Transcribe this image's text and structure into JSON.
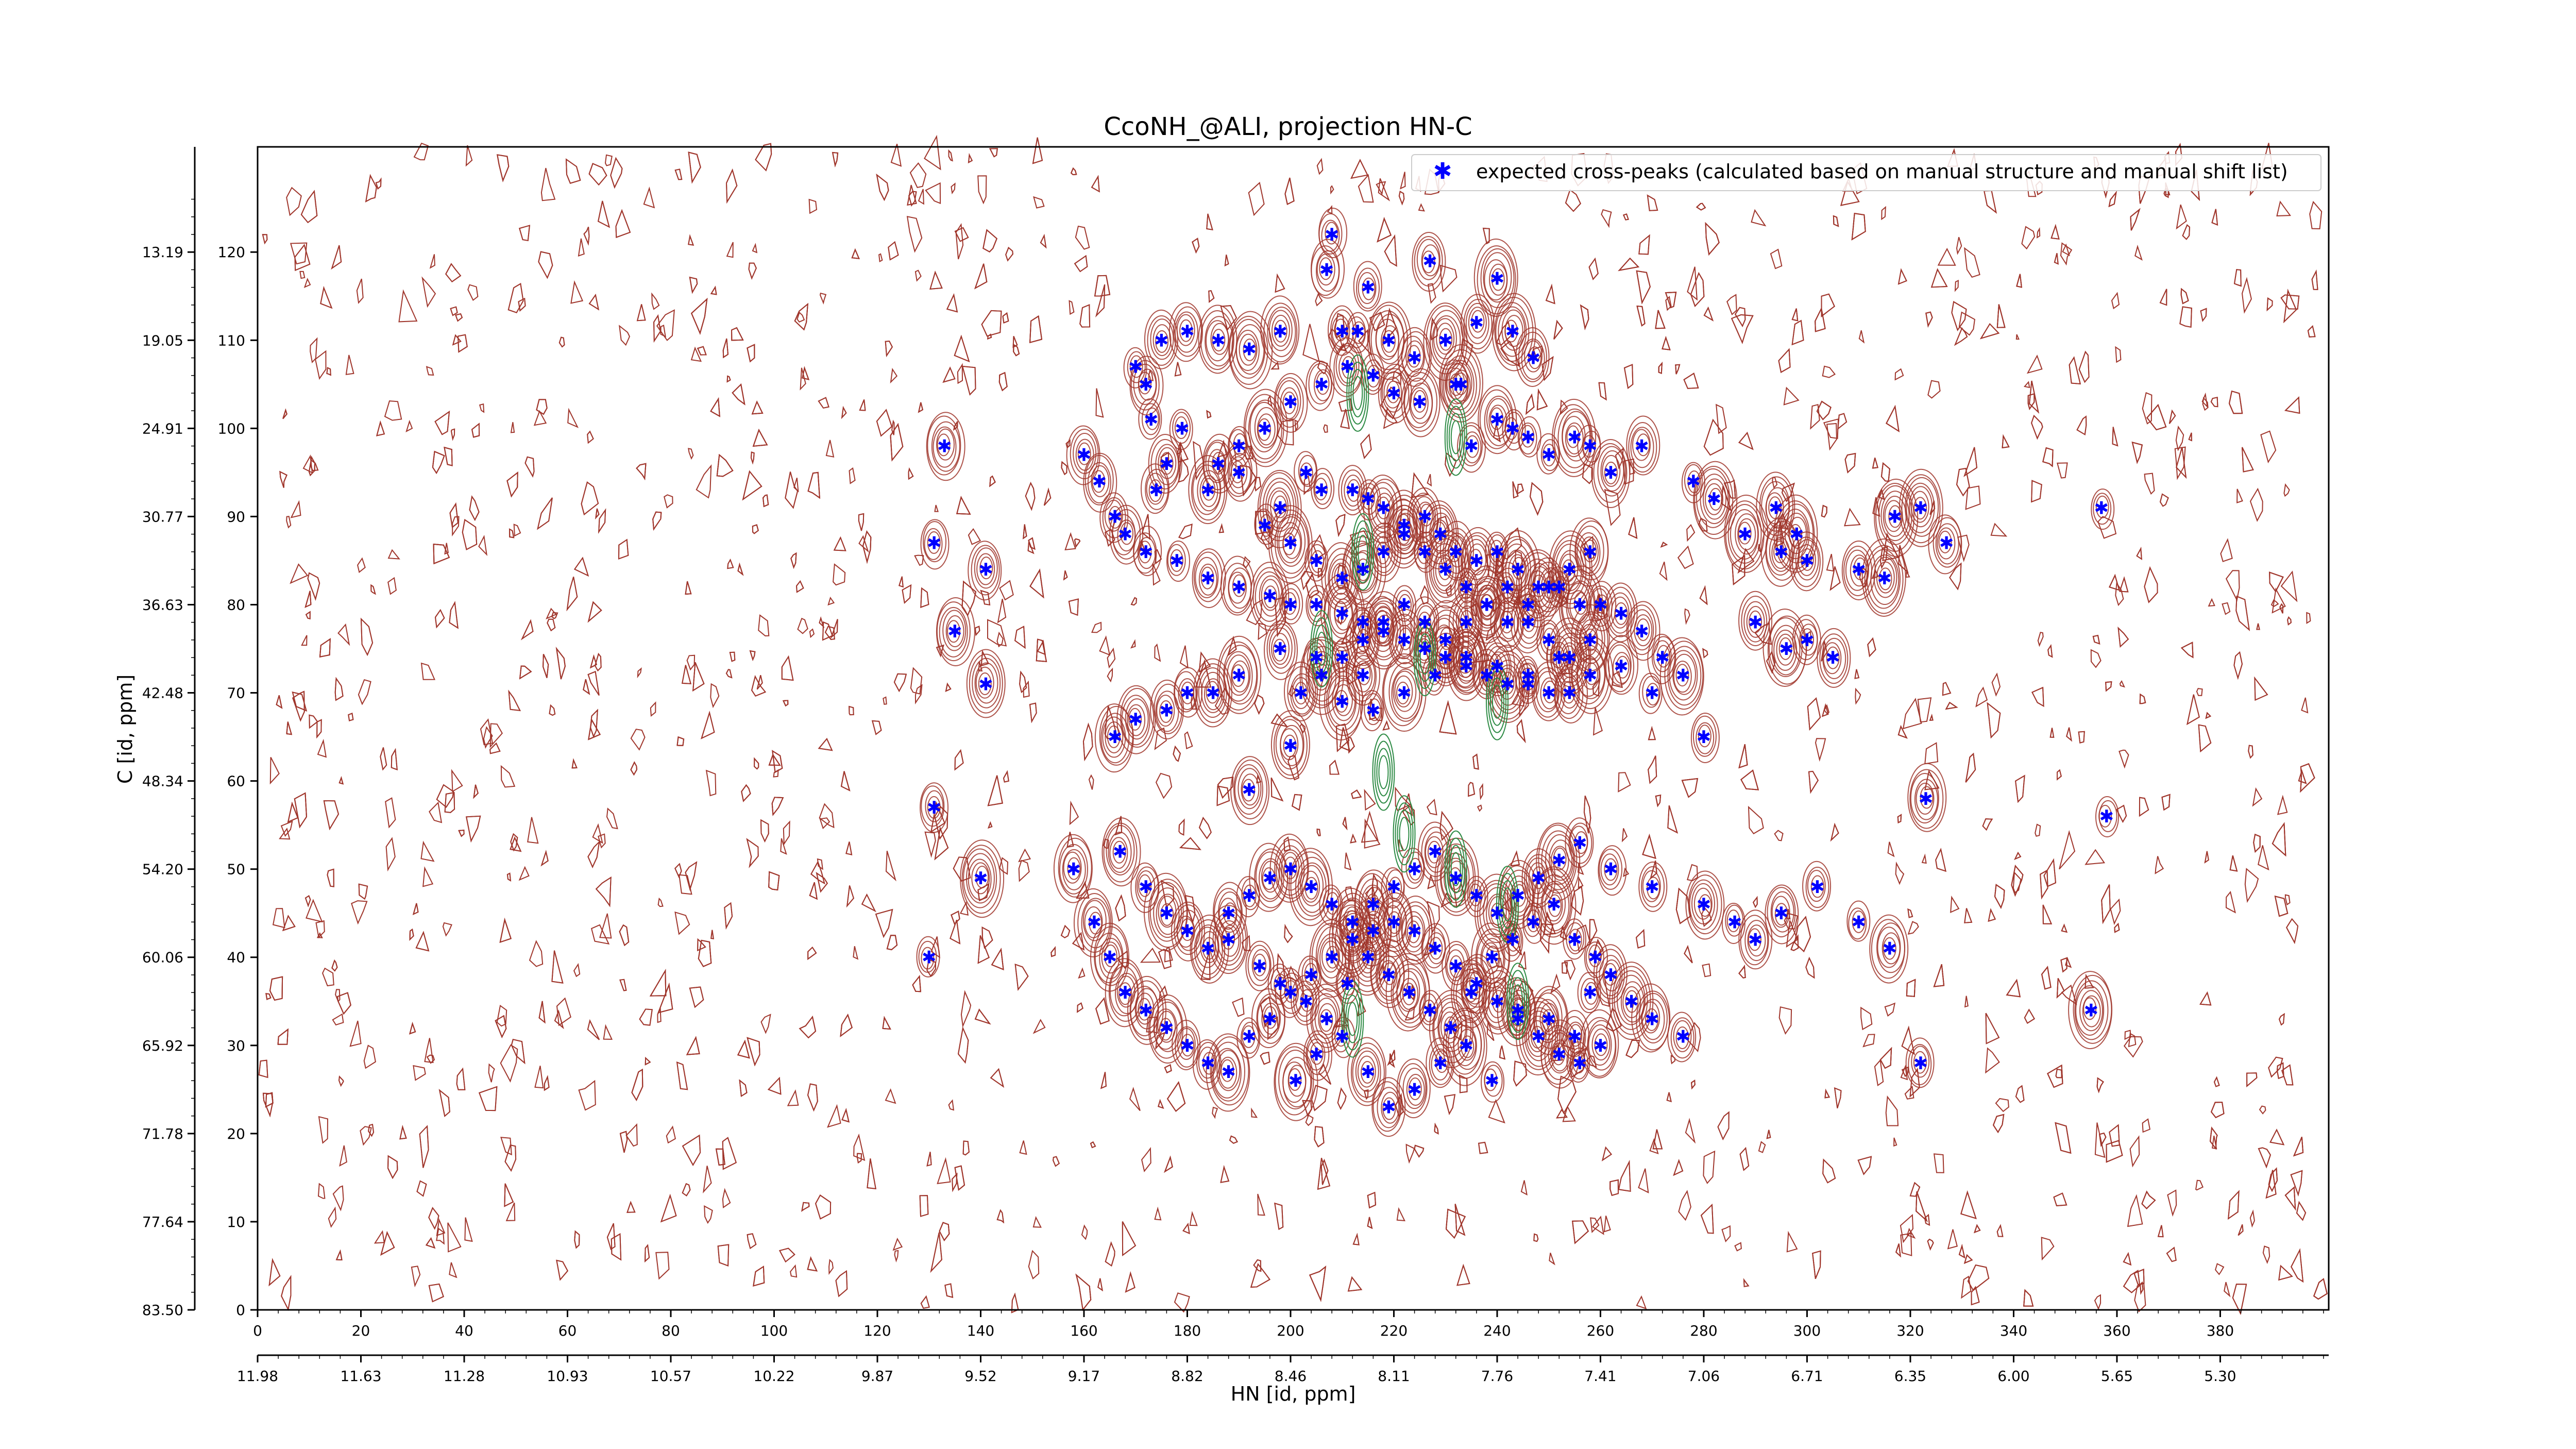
{
  "chart_data": {
    "type": "scatter",
    "title": "CcoNH_@ALI, projection HN-C",
    "xlabel": "HN [id, ppm]",
    "ylabel": "C [id, ppm]",
    "x_index_range": [
      0,
      400
    ],
    "y_index_range": [
      0,
      126
    ],
    "x_index_ticks": [
      "0",
      "20",
      "40",
      "60",
      "80",
      "100",
      "120",
      "140",
      "160",
      "180",
      "200",
      "220",
      "240",
      "260",
      "280",
      "300",
      "320",
      "340",
      "360",
      "380"
    ],
    "x_ppm_ticks": [
      "11.98",
      "11.63",
      "11.28",
      "10.93",
      "10.57",
      "10.22",
      "9.87",
      "9.52",
      "9.17",
      "8.82",
      "8.46",
      "8.11",
      "7.76",
      "7.41",
      "7.06",
      "6.71",
      "6.35",
      "6.00",
      "5.65",
      "5.30"
    ],
    "y_index_ticks": [
      "0",
      "10",
      "20",
      "30",
      "40",
      "50",
      "60",
      "70",
      "80",
      "90",
      "100",
      "110",
      "120"
    ],
    "y_ppm_ticks": [
      "83.50",
      "77.64",
      "71.78",
      "65.92",
      "60.06",
      "54.20",
      "48.34",
      "42.48",
      "36.63",
      "30.77",
      "24.91",
      "19.05",
      "13.19"
    ],
    "legend": {
      "placement": "top-right",
      "entries": [
        "expected cross-peaks (calculated based on manual structure and manual shift list)"
      ]
    },
    "colors": {
      "positive_contour": "#a0362c",
      "negative_contour": "#2e8b45",
      "peak_marker": "#0000ff"
    },
    "series": [
      {
        "name": "expected cross-peaks (calculated based on manual structure and manual shift list)",
        "points": [
          [
            208,
            122
          ],
          [
            207,
            118
          ],
          [
            210,
            111
          ],
          [
            213,
            111
          ],
          [
            198,
            111
          ],
          [
            216,
            106
          ],
          [
            220,
            104
          ],
          [
            225,
            103
          ],
          [
            230,
            110
          ],
          [
            232,
            105
          ],
          [
            235,
            98
          ],
          [
            240,
            101
          ],
          [
            243,
            100
          ],
          [
            246,
            99
          ],
          [
            250,
            97
          ],
          [
            255,
            99
          ],
          [
            258,
            98
          ],
          [
            262,
            95
          ],
          [
            268,
            98
          ],
          [
            278,
            94
          ],
          [
            282,
            92
          ],
          [
            294,
            91
          ],
          [
            298,
            88
          ],
          [
            288,
            88
          ],
          [
            295,
            86
          ],
          [
            300,
            85
          ],
          [
            310,
            84
          ],
          [
            315,
            83
          ],
          [
            317,
            90
          ],
          [
            322,
            91
          ],
          [
            327,
            87
          ],
          [
            357,
            91
          ],
          [
            186,
            110
          ],
          [
            192,
            109
          ],
          [
            175,
            110
          ],
          [
            180,
            111
          ],
          [
            170,
            107
          ],
          [
            172,
            105
          ],
          [
            173,
            101
          ],
          [
            179,
            100
          ],
          [
            176,
            96
          ],
          [
            174,
            93
          ],
          [
            184,
            93
          ],
          [
            190,
            95
          ],
          [
            198,
            91
          ],
          [
            203,
            95
          ],
          [
            206,
            93
          ],
          [
            212,
            93
          ],
          [
            215,
            92
          ],
          [
            218,
            91
          ],
          [
            222,
            89
          ],
          [
            226,
            90
          ],
          [
            229,
            88
          ],
          [
            232,
            86
          ],
          [
            236,
            85
          ],
          [
            240,
            86
          ],
          [
            244,
            84
          ],
          [
            248,
            82
          ],
          [
            252,
            82
          ],
          [
            256,
            80
          ],
          [
            260,
            80
          ],
          [
            264,
            79
          ],
          [
            268,
            77
          ],
          [
            272,
            74
          ],
          [
            276,
            72
          ],
          [
            160,
            97
          ],
          [
            163,
            94
          ],
          [
            166,
            90
          ],
          [
            168,
            88
          ],
          [
            172,
            86
          ],
          [
            178,
            85
          ],
          [
            184,
            83
          ],
          [
            190,
            82
          ],
          [
            196,
            81
          ],
          [
            200,
            80
          ],
          [
            205,
            80
          ],
          [
            210,
            79
          ],
          [
            214,
            78
          ],
          [
            218,
            77
          ],
          [
            222,
            76
          ],
          [
            226,
            75
          ],
          [
            230,
            74
          ],
          [
            234,
            73
          ],
          [
            238,
            72
          ],
          [
            242,
            71
          ],
          [
            246,
            71
          ],
          [
            250,
            70
          ],
          [
            254,
            70
          ],
          [
            133,
            98
          ],
          [
            131,
            87
          ],
          [
            141,
            84
          ],
          [
            135,
            77
          ],
          [
            141,
            71
          ],
          [
            131,
            57
          ],
          [
            140,
            49
          ],
          [
            130,
            40
          ],
          [
            158,
            50
          ],
          [
            162,
            44
          ],
          [
            165,
            40
          ],
          [
            168,
            36
          ],
          [
            172,
            34
          ],
          [
            176,
            32
          ],
          [
            180,
            30
          ],
          [
            184,
            28
          ],
          [
            188,
            27
          ],
          [
            192,
            31
          ],
          [
            196,
            33
          ],
          [
            200,
            36
          ],
          [
            204,
            38
          ],
          [
            208,
            40
          ],
          [
            212,
            42
          ],
          [
            216,
            43
          ],
          [
            220,
            44
          ],
          [
            224,
            43
          ],
          [
            228,
            41
          ],
          [
            232,
            39
          ],
          [
            236,
            37
          ],
          [
            240,
            35
          ],
          [
            244,
            33
          ],
          [
            248,
            31
          ],
          [
            252,
            29
          ],
          [
            256,
            28
          ],
          [
            260,
            30
          ],
          [
            167,
            52
          ],
          [
            172,
            48
          ],
          [
            176,
            45
          ],
          [
            180,
            43
          ],
          [
            184,
            41
          ],
          [
            188,
            45
          ],
          [
            192,
            47
          ],
          [
            196,
            49
          ],
          [
            200,
            50
          ],
          [
            204,
            48
          ],
          [
            208,
            46
          ],
          [
            212,
            44
          ],
          [
            216,
            46
          ],
          [
            220,
            48
          ],
          [
            224,
            50
          ],
          [
            228,
            52
          ],
          [
            232,
            49
          ],
          [
            236,
            47
          ],
          [
            240,
            45
          ],
          [
            244,
            47
          ],
          [
            248,
            49
          ],
          [
            252,
            51
          ],
          [
            256,
            53
          ],
          [
            262,
            50
          ],
          [
            270,
            48
          ],
          [
            280,
            46
          ],
          [
            286,
            44
          ],
          [
            290,
            42
          ],
          [
            295,
            45
          ],
          [
            302,
            48
          ],
          [
            310,
            44
          ],
          [
            316,
            41
          ],
          [
            322,
            28
          ],
          [
            355,
            34
          ],
          [
            358,
            56
          ],
          [
            323,
            58
          ],
          [
            192,
            59
          ],
          [
            200,
            64
          ],
          [
            210,
            69
          ],
          [
            214,
            72
          ],
          [
            205,
            74
          ],
          [
            198,
            75
          ],
          [
            190,
            72
          ],
          [
            185,
            70
          ],
          [
            180,
            70
          ],
          [
            176,
            68
          ],
          [
            170,
            67
          ],
          [
            166,
            65
          ],
          [
            216,
            68
          ],
          [
            222,
            70
          ],
          [
            228,
            72
          ],
          [
            234,
            74
          ],
          [
            240,
            73
          ],
          [
            246,
            72
          ],
          [
            252,
            74
          ],
          [
            258,
            76
          ],
          [
            264,
            73
          ],
          [
            270,
            70
          ],
          [
            280,
            65
          ],
          [
            290,
            78
          ],
          [
            296,
            75
          ],
          [
            300,
            76
          ],
          [
            305,
            74
          ],
          [
            201,
            26
          ],
          [
            205,
            29
          ],
          [
            210,
            31
          ],
          [
            215,
            27
          ],
          [
            219,
            23
          ],
          [
            224,
            25
          ],
          [
            229,
            28
          ],
          [
            234,
            30
          ],
          [
            239,
            26
          ],
          [
            244,
            34
          ],
          [
            250,
            33
          ],
          [
            255,
            31
          ],
          [
            258,
            36
          ],
          [
            262,
            38
          ],
          [
            266,
            35
          ],
          [
            270,
            33
          ],
          [
            276,
            31
          ],
          [
            188,
            42
          ],
          [
            194,
            39
          ],
          [
            198,
            37
          ],
          [
            203,
            35
          ],
          [
            207,
            33
          ],
          [
            211,
            37
          ],
          [
            215,
            40
          ],
          [
            219,
            38
          ],
          [
            223,
            36
          ],
          [
            227,
            34
          ],
          [
            231,
            32
          ],
          [
            235,
            36
          ],
          [
            239,
            40
          ],
          [
            243,
            42
          ],
          [
            247,
            44
          ],
          [
            251,
            46
          ],
          [
            255,
            42
          ],
          [
            259,
            40
          ],
          [
            195,
            89
          ],
          [
            200,
            87
          ],
          [
            205,
            85
          ],
          [
            210,
            83
          ],
          [
            214,
            84
          ],
          [
            218,
            86
          ],
          [
            222,
            88
          ],
          [
            226,
            86
          ],
          [
            230,
            84
          ],
          [
            234,
            82
          ],
          [
            238,
            80
          ],
          [
            242,
            78
          ],
          [
            246,
            80
          ],
          [
            250,
            82
          ],
          [
            254,
            84
          ],
          [
            258,
            86
          ],
          [
            202,
            70
          ],
          [
            206,
            72
          ],
          [
            210,
            74
          ],
          [
            214,
            76
          ],
          [
            218,
            78
          ],
          [
            222,
            80
          ],
          [
            226,
            78
          ],
          [
            230,
            76
          ],
          [
            234,
            78
          ],
          [
            238,
            80
          ],
          [
            242,
            82
          ],
          [
            246,
            78
          ],
          [
            250,
            76
          ],
          [
            254,
            74
          ],
          [
            258,
            72
          ],
          [
            215,
            116
          ],
          [
            227,
            119
          ],
          [
            240,
            117
          ],
          [
            236,
            112
          ],
          [
            243,
            111
          ],
          [
            247,
            108
          ],
          [
            233,
            105
          ],
          [
            224,
            108
          ],
          [
            219,
            110
          ],
          [
            211,
            107
          ],
          [
            206,
            105
          ],
          [
            200,
            103
          ],
          [
            195,
            100
          ],
          [
            190,
            98
          ],
          [
            186,
            96
          ]
        ]
      }
    ]
  }
}
